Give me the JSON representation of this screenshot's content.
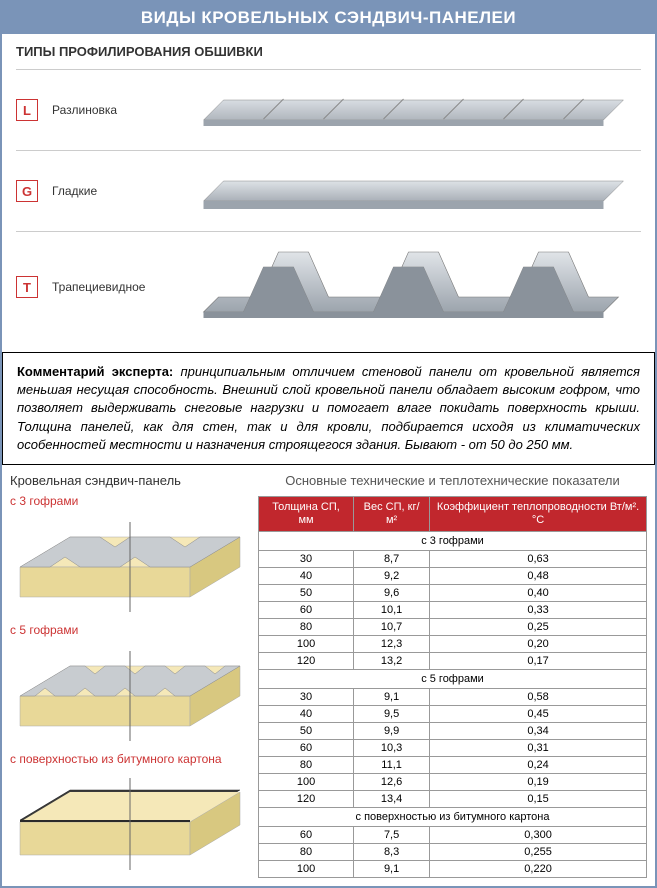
{
  "main_title": "ВИДЫ КРОВЕЛЬНЫХ СЭНДВИЧ-ПАНЕЛЕИ",
  "profiling": {
    "title": "ТИПЫ ПРОФИЛИРОВАНИЯ ОБШИВКИ",
    "items": [
      {
        "badge": "L",
        "label": "Разлиновка"
      },
      {
        "badge": "G",
        "label": "Гладкие"
      },
      {
        "badge": "T",
        "label": "Трапециевидное"
      }
    ]
  },
  "expert": {
    "lead": "Комментарий эксперта:",
    "body": "принципиальным отличием стеновой панели от кровельной является меньшая несущая способность. Внешний слой кровельной панели обладает высоким гофром, что позволяет выдерживать снеговые нагрузки и помогает влаге покидать поверхность крыши. Толщина панелей, как для стен, так и для кровли, подбирается исходя из климатических особенностей местности и назначения строящегося здания. Бывают - от 50 до 250 мм."
  },
  "lower": {
    "left_title": "Кровельная сэндвич-панель",
    "variants": [
      "с 3 гофрами",
      "с 5 гофрами",
      "с поверхностью из битумного картона"
    ],
    "table_title": "Основные технические и теплотехнические показатели",
    "headers": [
      "Толщина СП, мм",
      "Вес СП, кг/м²",
      "Коэффициент теплопроводности Вт/м².°C"
    ],
    "groups": [
      {
        "label": "с 3 гофрами",
        "rows": [
          [
            "30",
            "8,7",
            "0,63"
          ],
          [
            "40",
            "9,2",
            "0,48"
          ],
          [
            "50",
            "9,6",
            "0,40"
          ],
          [
            "60",
            "10,1",
            "0,33"
          ],
          [
            "80",
            "10,7",
            "0,25"
          ],
          [
            "100",
            "12,3",
            "0,20"
          ],
          [
            "120",
            "13,2",
            "0,17"
          ]
        ]
      },
      {
        "label": "с 5 гофрами",
        "rows": [
          [
            "30",
            "9,1",
            "0,58"
          ],
          [
            "40",
            "9,5",
            "0,45"
          ],
          [
            "50",
            "9,9",
            "0,34"
          ],
          [
            "60",
            "10,3",
            "0,31"
          ],
          [
            "80",
            "11,1",
            "0,24"
          ],
          [
            "100",
            "12,6",
            "0,19"
          ],
          [
            "120",
            "13,4",
            "0,15"
          ]
        ]
      },
      {
        "label": "с поверхностью из битумного картона",
        "rows": [
          [
            "60",
            "7,5",
            "0,300"
          ],
          [
            "80",
            "8,3",
            "0,255"
          ],
          [
            "100",
            "9,1",
            "0,220"
          ]
        ]
      }
    ]
  },
  "style": {
    "header_bg": "#7a94b8",
    "red": "#c1272d",
    "badge_border": "#c33",
    "panel_cream": "#f5e8b8",
    "panel_grey": "#c8ccd0",
    "panel_midgrey": "#9ca4ad",
    "bitumen": "#3a3a3a",
    "border": "#999"
  }
}
